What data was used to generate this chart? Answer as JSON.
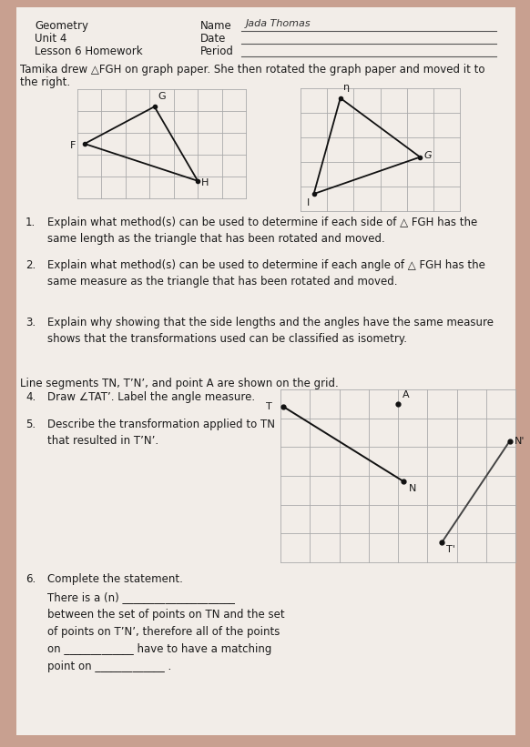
{
  "bg_color": "#c8a090",
  "paper_color": "#f2ede8",
  "header_left": [
    "Geometry",
    "Unit 4",
    "Lesson 6 Homework"
  ],
  "name_text": "Jada Thomas",
  "intro_text": "Tamika drew △FGH on graph paper. She then rotated the graph paper and moved it to\nthe right.",
  "q1_num": "1.",
  "q1_body": "Explain what method(s) can be used to determine if each side of △ FGH has the\n     same length as the triangle that has been rotated and moved.",
  "q2_num": "2.",
  "q2_body": "Explain what method(s) can be used to determine if each angle of △ FGH has the\n     same measure as the triangle that has been rotated and moved.",
  "q3_num": "3.",
  "q3_body": "Explain why showing that the side lengths and the angles have the same measure\n     shows that the transformations used can be classified as isometry.",
  "lineseg_intro": "Line segments TN, T’N’, and point A are shown on the grid.",
  "q4_num": "4.",
  "q4_body": "Draw ∠TAT’. Label the angle measure.",
  "q5_num": "5.",
  "q5_body": "Describe the transformation applied to TN\nthat resulted in T’N’.",
  "q6_num": "6.",
  "q6_label": "Complete the statement.",
  "q6_body": "There is a (n) _____________________\nbetween the set of points on TN and the set\nof points on T’N’, therefore all of the points\non _____________ have to have a matching\npoint on _____________ ."
}
